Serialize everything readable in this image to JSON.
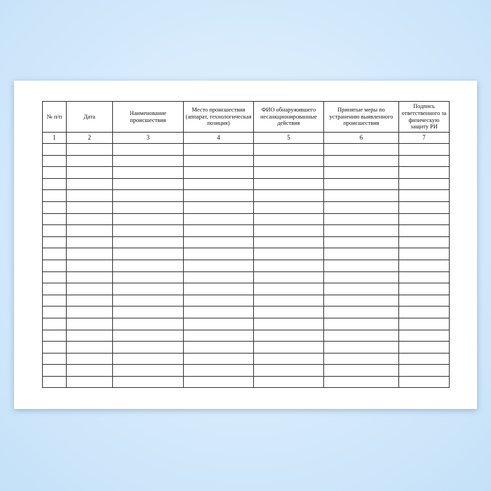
{
  "columns": [
    {
      "header": "№ п/п",
      "number": "1"
    },
    {
      "header": "Дата",
      "number": "2"
    },
    {
      "header": "Наименование происшествия",
      "number": "3"
    },
    {
      "header": "Место происшествия (аппарат, технологическая позиция)",
      "number": "4"
    },
    {
      "header": "ФИО обнаружившего несанкционированные действия",
      "number": "5"
    },
    {
      "header": "Принятые меры по устранению выявленного происшествия",
      "number": "6"
    },
    {
      "header": "Подпись ответственного за физическую защиту РИ",
      "number": "7"
    }
  ],
  "empty_rows": 21
}
